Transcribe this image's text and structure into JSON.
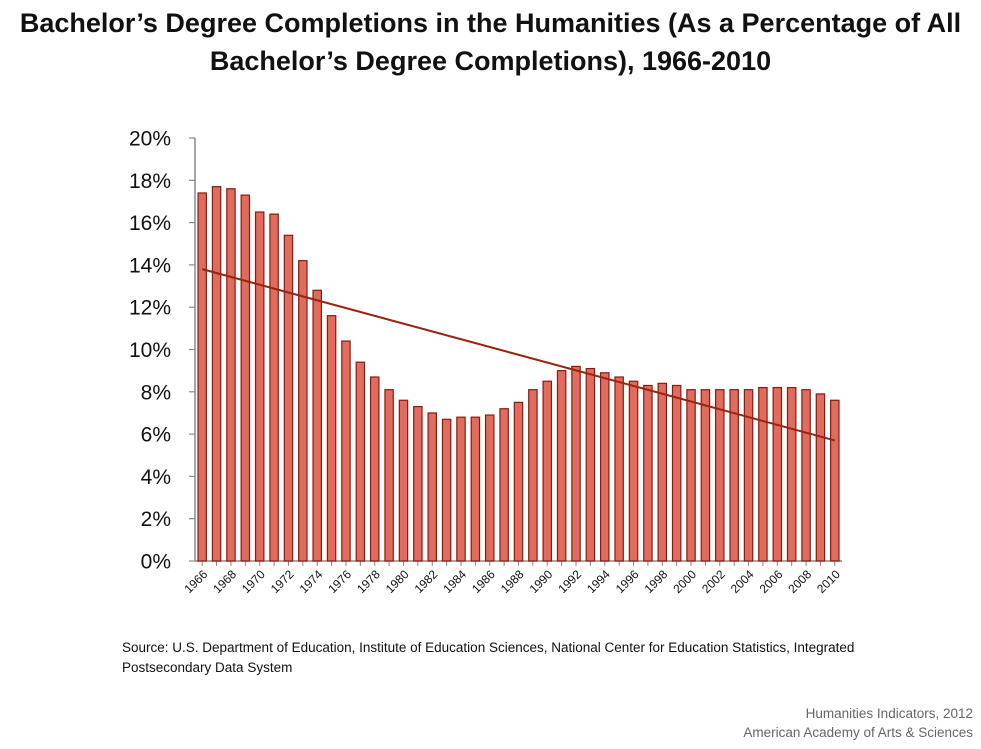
{
  "title_line1": "Bachelor’s Degree Completions in the Humanities (As a Percentage of All",
  "title_line2": "Bachelor’s Degree Completions), 1966-2010",
  "source": "Source: U.S. Department of Education, Institute of Education Sciences, National Center for Education Statistics, Integrated Postsecondary Data System",
  "credit_line1": "Humanities Indicators, 2012",
  "credit_line2": "American Academy of Arts & Sciences",
  "colors": {
    "bar_fill": "#e06c5e",
    "bar_stroke": "#8b1a10",
    "trend": "#9a2410"
  },
  "chart_data": {
    "type": "bar",
    "x": [
      1966,
      1967,
      1968,
      1969,
      1970,
      1971,
      1972,
      1973,
      1974,
      1975,
      1976,
      1977,
      1978,
      1979,
      1980,
      1981,
      1982,
      1983,
      1984,
      1985,
      1986,
      1987,
      1988,
      1989,
      1990,
      1991,
      1992,
      1993,
      1994,
      1995,
      1996,
      1997,
      1998,
      1999,
      2000,
      2001,
      2002,
      2003,
      2004,
      2005,
      2006,
      2007,
      2008,
      2009,
      2010
    ],
    "values": [
      17.4,
      17.7,
      17.6,
      17.3,
      16.5,
      16.4,
      15.4,
      14.2,
      12.8,
      11.6,
      10.4,
      9.4,
      8.7,
      8.1,
      7.6,
      7.3,
      7.0,
      6.7,
      6.8,
      6.8,
      6.9,
      7.2,
      7.5,
      8.1,
      8.5,
      9.0,
      9.2,
      9.1,
      8.9,
      8.7,
      8.5,
      8.3,
      8.4,
      8.3,
      8.1,
      8.1,
      8.1,
      8.1,
      8.1,
      8.2,
      8.2,
      8.2,
      8.1,
      7.9,
      7.6
    ],
    "tick_labels": [
      "1966",
      "1968",
      "1970",
      "1972",
      "1974",
      "1976",
      "1978",
      "1980",
      "1982",
      "1984",
      "1986",
      "1988",
      "1990",
      "1992",
      "1994",
      "1996",
      "1998",
      "2000",
      "2002",
      "2004",
      "2006",
      "2008",
      "2010"
    ],
    "y_tick_labels": [
      "0%",
      "2%",
      "4%",
      "6%",
      "8%",
      "10%",
      "12%",
      "14%",
      "16%",
      "18%",
      "20%"
    ],
    "ylim": [
      0,
      20
    ],
    "trendline": {
      "start": 13.8,
      "end": 5.7
    },
    "grid": false,
    "legend": "none"
  }
}
